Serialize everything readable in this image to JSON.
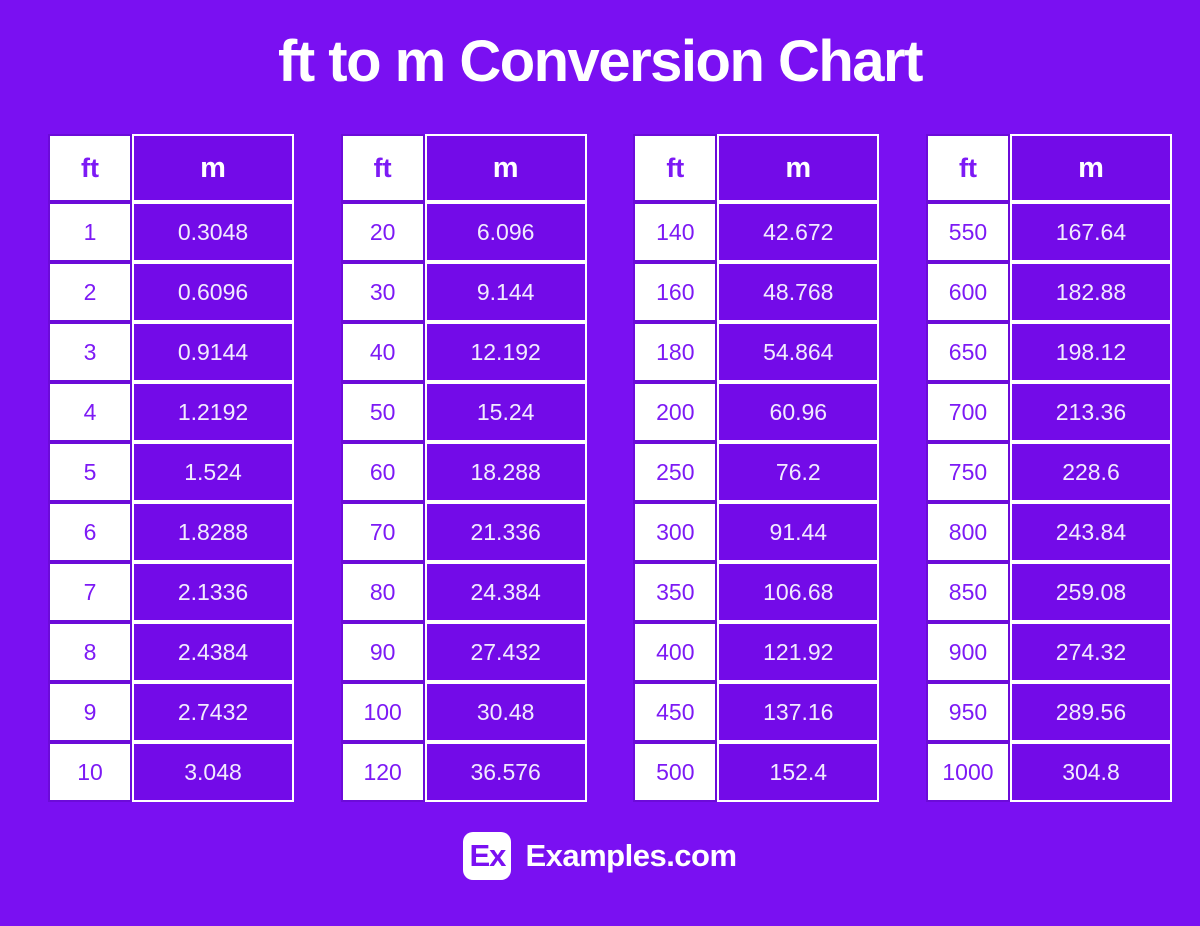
{
  "title": "ft to m Conversion Chart",
  "colors": {
    "background": "#7a10f2",
    "m_cell_fill": "#730be8",
    "ft_cell_border": "#6c0bd9",
    "ft_text_purple": "#7d1af5",
    "m_text_light": "#f2ebff",
    "white": "#ffffff"
  },
  "column_headers": {
    "ft": "ft",
    "m": "m"
  },
  "footer": {
    "logo_text": "Ex",
    "brand": "Examples.com"
  },
  "chart_data": {
    "type": "table",
    "title": "ft to m Conversion Chart",
    "columns": [
      "ft",
      "m"
    ],
    "tables": [
      {
        "rows": [
          [
            "1",
            "0.3048"
          ],
          [
            "2",
            "0.6096"
          ],
          [
            "3",
            "0.9144"
          ],
          [
            "4",
            "1.2192"
          ],
          [
            "5",
            "1.524"
          ],
          [
            "6",
            "1.8288"
          ],
          [
            "7",
            "2.1336"
          ],
          [
            "8",
            "2.4384"
          ],
          [
            "9",
            "2.7432"
          ],
          [
            "10",
            "3.048"
          ]
        ]
      },
      {
        "rows": [
          [
            "20",
            "6.096"
          ],
          [
            "30",
            "9.144"
          ],
          [
            "40",
            "12.192"
          ],
          [
            "50",
            "15.24"
          ],
          [
            "60",
            "18.288"
          ],
          [
            "70",
            "21.336"
          ],
          [
            "80",
            "24.384"
          ],
          [
            "90",
            "27.432"
          ],
          [
            "100",
            "30.48"
          ],
          [
            "120",
            "36.576"
          ]
        ]
      },
      {
        "rows": [
          [
            "140",
            "42.672"
          ],
          [
            "160",
            "48.768"
          ],
          [
            "180",
            "54.864"
          ],
          [
            "200",
            "60.96"
          ],
          [
            "250",
            "76.2"
          ],
          [
            "300",
            "91.44"
          ],
          [
            "350",
            "106.68"
          ],
          [
            "400",
            "121.92"
          ],
          [
            "450",
            "137.16"
          ],
          [
            "500",
            "152.4"
          ]
        ]
      },
      {
        "rows": [
          [
            "550",
            "167.64"
          ],
          [
            "600",
            "182.88"
          ],
          [
            "650",
            "198.12"
          ],
          [
            "700",
            "213.36"
          ],
          [
            "750",
            "228.6"
          ],
          [
            "800",
            "243.84"
          ],
          [
            "850",
            "259.08"
          ],
          [
            "900",
            "274.32"
          ],
          [
            "950",
            "289.56"
          ],
          [
            "1000",
            "304.8"
          ]
        ]
      }
    ]
  }
}
